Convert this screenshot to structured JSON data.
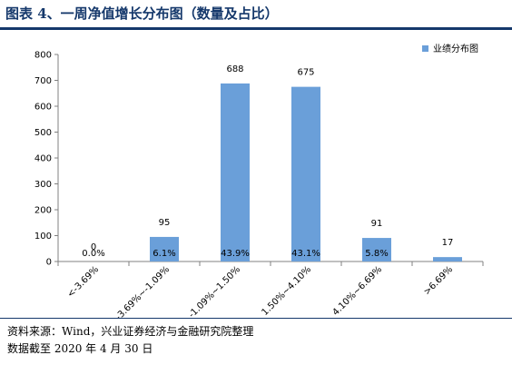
{
  "figure": {
    "title": "图表 4、一周净值增长分布图（数量及占比）",
    "source": "资料来源：Wind，兴业证券经济与金融研究院整理",
    "date_note": "数据截至 2020 年 4 月 30 日"
  },
  "chart_data": {
    "type": "bar",
    "categories": [
      "<-3.69%",
      "-3.69%~-1.09%",
      "-1.09%~1.50%",
      "1.50%~4.10%",
      "4.10%~6.69%",
      ">6.69%"
    ],
    "series": [
      {
        "name": "业绩分布图",
        "values": [
          0,
          95,
          688,
          675,
          91,
          17
        ],
        "percent_labels": [
          "0.0%",
          "6.1%",
          "43.9%",
          "43.1%",
          "5.8%",
          ""
        ]
      }
    ],
    "yticks": [
      0,
      100,
      200,
      300,
      400,
      500,
      600,
      700,
      800
    ],
    "ylim": [
      0,
      800
    ],
    "grid": false,
    "legend_position": "top-right",
    "bar_color": "#6a9fd9",
    "axis_color": "#808080"
  }
}
